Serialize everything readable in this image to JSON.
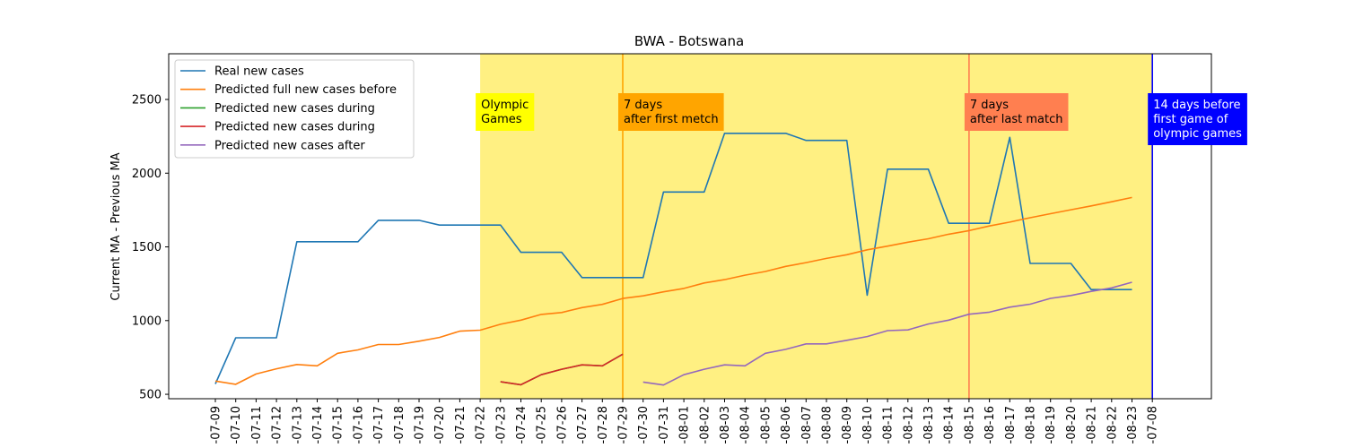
{
  "chart_data": {
    "type": "line",
    "title": "BWA - Botswana",
    "ylabel": "Current MA - Previous MA",
    "xlabel": "",
    "ylim": [
      470,
      2810
    ],
    "yticks": [
      500,
      1000,
      1500,
      2000,
      2500
    ],
    "categories": [
      "07-09",
      "07-10",
      "07-11",
      "07-12",
      "07-13",
      "07-14",
      "07-15",
      "07-16",
      "07-17",
      "07-18",
      "07-19",
      "07-20",
      "07-21",
      "07-22",
      "07-23",
      "07-24",
      "07-25",
      "07-26",
      "07-27",
      "07-28",
      "07-29",
      "07-30",
      "07-31",
      "08-01",
      "08-02",
      "08-03",
      "08-04",
      "08-05",
      "08-06",
      "08-07",
      "08-08",
      "08-09",
      "08-10",
      "08-11",
      "08-12",
      "08-13",
      "08-14",
      "08-15",
      "08-16",
      "08-17",
      "08-18",
      "08-19",
      "08-20",
      "08-21",
      "08-22",
      "08-23",
      "07-08"
    ],
    "tick_labels": [
      "-07-09",
      "-07-10",
      "-07-11",
      "-07-12",
      "-07-13",
      "-07-14",
      "-07-15",
      "-07-16",
      "-07-17",
      "-07-18",
      "-07-19",
      "-07-20",
      "-07-21",
      "-07-22",
      "-07-23",
      "-07-24",
      "-07-25",
      "-07-26",
      "-07-27",
      "-07-28",
      "-07-29",
      "-07-30",
      "-07-31",
      "-08-01",
      "-08-02",
      "-08-03",
      "-08-04",
      "-08-05",
      "-08-06",
      "-08-07",
      "-08-08",
      "-08-09",
      "-08-10",
      "-08-11",
      "-08-12",
      "-08-13",
      "-08-14",
      "-08-15",
      "-08-16",
      "-08-17",
      "-08-18",
      "-08-19",
      "-08-20",
      "-08-21",
      "-08-22",
      "-08-23",
      "-07-08"
    ],
    "shaded_range": [
      "07-22",
      "07-08"
    ],
    "series": [
      {
        "name": "Real new cases",
        "color": "#1f77b4",
        "x": [
          "07-09",
          "07-10",
          "07-11",
          "07-12",
          "07-13",
          "07-14",
          "07-15",
          "07-16",
          "07-17",
          "07-18",
          "07-19",
          "07-20",
          "07-21",
          "07-22",
          "07-23",
          "07-24",
          "07-25",
          "07-26",
          "07-27",
          "07-28",
          "07-29",
          "07-30",
          "07-31",
          "08-01",
          "08-02",
          "08-03",
          "08-04",
          "08-05",
          "08-06",
          "08-07",
          "08-08",
          "08-09",
          "08-10",
          "08-11",
          "08-12",
          "08-13",
          "08-14",
          "08-15",
          "08-16",
          "08-17",
          "08-18",
          "08-19",
          "08-20",
          "08-21",
          "08-22",
          "08-23"
        ],
        "values": [
          570,
          883,
          883,
          883,
          1535,
          1535,
          1535,
          1535,
          1680,
          1680,
          1680,
          1648,
          1648,
          1648,
          1648,
          1463,
          1463,
          1463,
          1292,
          1292,
          1292,
          1292,
          1872,
          1872,
          1872,
          2270,
          2270,
          2270,
          2270,
          2222,
          2222,
          2222,
          1172,
          2027,
          2027,
          2027,
          1660,
          1660,
          1660,
          2243,
          1388,
          1388,
          1388,
          1210,
          1210,
          1210
        ]
      },
      {
        "name": "Predicted full new cases before",
        "color": "#ff7f0e",
        "x": [
          "07-09",
          "07-10",
          "07-11",
          "07-12",
          "07-13",
          "07-14",
          "07-15",
          "07-16",
          "07-17",
          "07-18",
          "07-19",
          "07-20",
          "07-21",
          "07-22",
          "07-23",
          "07-24",
          "07-25",
          "07-26",
          "07-27",
          "07-28",
          "07-29",
          "07-30",
          "07-31",
          "08-01",
          "08-02",
          "08-03",
          "08-04",
          "08-05",
          "08-06",
          "08-07",
          "08-08",
          "08-09",
          "08-10",
          "08-11",
          "08-12",
          "08-13",
          "08-14",
          "08-15",
          "08-16",
          "08-17",
          "08-18",
          "08-19",
          "08-20",
          "08-21",
          "08-22",
          "08-23"
        ],
        "values": [
          590,
          568,
          638,
          673,
          702,
          693,
          778,
          801,
          838,
          838,
          860,
          886,
          928,
          935,
          975,
          1003,
          1042,
          1055,
          1088,
          1110,
          1150,
          1168,
          1195,
          1218,
          1255,
          1278,
          1308,
          1333,
          1368,
          1393,
          1422,
          1447,
          1480,
          1505,
          1532,
          1555,
          1586,
          1610,
          1642,
          1668,
          1698,
          1725,
          1752,
          1778,
          1806,
          1835
        ]
      },
      {
        "name": "Predicted new cases during",
        "color": "#2ca02c",
        "x": [
          "07-23",
          "07-24",
          "07-25",
          "07-26",
          "07-27",
          "07-28",
          "07-29"
        ],
        "values": [
          585,
          565,
          633,
          670,
          700,
          693,
          772
        ]
      },
      {
        "name": "Predicted new cases during",
        "color": "#d62728",
        "x": [
          "07-23",
          "07-24",
          "07-25",
          "07-26",
          "07-27",
          "07-28",
          "07-29"
        ],
        "values": [
          585,
          565,
          633,
          670,
          700,
          693,
          772
        ]
      },
      {
        "name": "Predicted new cases after",
        "color": "#9467bd",
        "x": [
          "07-30",
          "07-31",
          "08-01",
          "08-02",
          "08-03",
          "08-04",
          "08-05",
          "08-06",
          "08-07",
          "08-08",
          "08-09",
          "08-10",
          "08-11",
          "08-12",
          "08-13",
          "08-14",
          "08-15",
          "08-16",
          "08-17",
          "08-18",
          "08-19",
          "08-20",
          "08-21",
          "08-22",
          "08-23"
        ],
        "values": [
          583,
          563,
          633,
          670,
          700,
          693,
          778,
          805,
          842,
          842,
          866,
          892,
          932,
          937,
          977,
          1003,
          1043,
          1057,
          1091,
          1111,
          1151,
          1170,
          1198,
          1222,
          1260
        ]
      }
    ],
    "vlines": [
      {
        "x": "07-29",
        "color": "#ffa500"
      },
      {
        "x": "08-15",
        "color": "#ff7f50"
      },
      {
        "x": "07-08",
        "color": "#0000ff"
      }
    ],
    "annotations": [
      {
        "lines": [
          "Olympic",
          "Games"
        ],
        "x": "07-22",
        "y": 2420,
        "bg": "#ffff00",
        "color": "#000000"
      },
      {
        "lines": [
          "7 days",
          "after first metch"
        ],
        "x": "07-29",
        "y": 2420,
        "bg": "#ffa500",
        "color": "#000000"
      },
      {
        "lines": [
          "7 days",
          "after last match"
        ],
        "x": "08-15",
        "y": 2420,
        "bg": "#ff7f50",
        "color": "#000000"
      },
      {
        "lines": [
          "14 days before",
          "first game of",
          "olympic games"
        ],
        "x": "07-08",
        "y": 2420,
        "bg": "#0000ff",
        "color": "#ffffff"
      }
    ],
    "legend": "upper-left",
    "grid": false
  }
}
